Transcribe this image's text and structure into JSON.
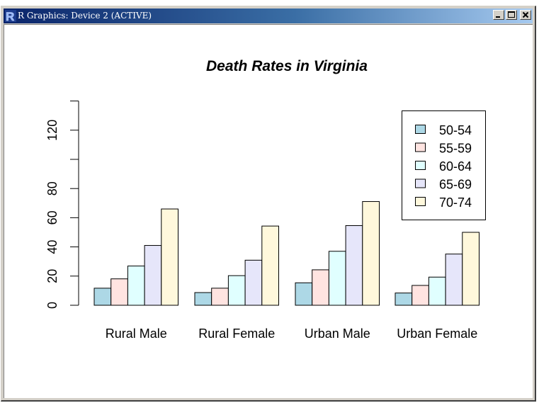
{
  "window": {
    "title": "R Graphics: Device 2 (ACTIVE)",
    "buttons": [
      "minimize",
      "maximize",
      "close"
    ]
  },
  "colors": {
    "bar_stroke": "#000000",
    "series": [
      "#add8e6",
      "#ffe4e1",
      "#e0ffff",
      "#e6e6fa",
      "#fff8dc"
    ]
  },
  "chart_data": {
    "type": "bar",
    "title": "Death Rates in Virginia",
    "xlabel": "",
    "ylabel": "",
    "categories": [
      "Rural Male",
      "Rural Female",
      "Urban Male",
      "Urban Female"
    ],
    "series": [
      {
        "name": "50-54",
        "values": [
          11.7,
          8.7,
          15.4,
          8.4
        ]
      },
      {
        "name": "55-59",
        "values": [
          18.1,
          11.7,
          24.3,
          13.6
        ]
      },
      {
        "name": "60-64",
        "values": [
          26.9,
          20.3,
          37.0,
          19.3
        ]
      },
      {
        "name": "65-69",
        "values": [
          41.0,
          30.9,
          54.6,
          35.1
        ]
      },
      {
        "name": "70-74",
        "values": [
          66.0,
          54.3,
          71.1,
          50.0
        ]
      }
    ],
    "ylim": [
      0,
      140
    ],
    "yticks": [
      0,
      20,
      40,
      60,
      80,
      100,
      120,
      140
    ],
    "ytick_labels": [
      "0",
      "20",
      "40",
      "60",
      "80",
      "",
      "120",
      ""
    ],
    "legend_position": "top-right",
    "grid": false,
    "layout": "beside"
  }
}
